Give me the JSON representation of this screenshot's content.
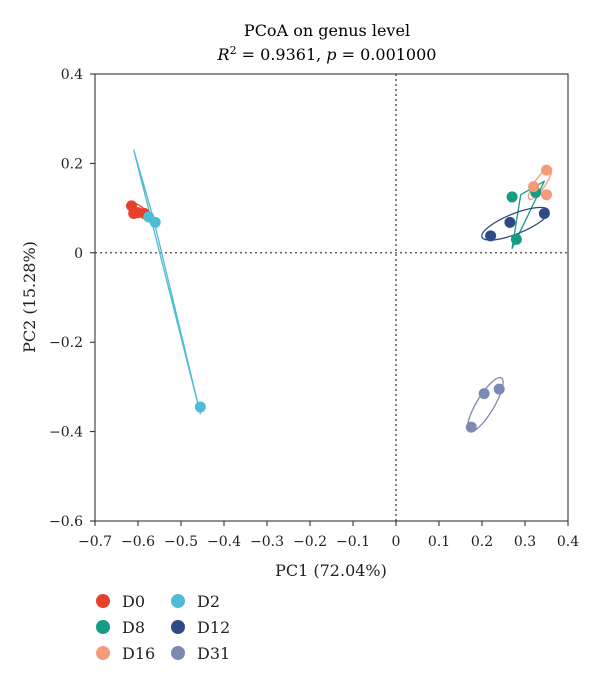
{
  "chart_data": {
    "type": "scatter",
    "title": "PCoA on genus level",
    "subtitle": {
      "r2_label": "R",
      "r2_sup": "2",
      "r2_value": " = 0.9361, ",
      "p_label": "p",
      "p_value": " = 0.001000"
    },
    "xlabel": "PC1 (72.04%)",
    "ylabel": "PC2 (15.28%)",
    "xlim": [
      -0.7,
      0.4
    ],
    "ylim": [
      -0.6,
      0.4
    ],
    "xticks": [
      -0.7,
      -0.6,
      -0.5,
      -0.4,
      -0.3,
      -0.2,
      -0.1,
      0,
      0.1,
      0.2,
      0.3,
      0.4
    ],
    "yticks": [
      -0.6,
      -0.4,
      -0.2,
      0,
      0.2,
      0.4
    ],
    "grid": false,
    "reference_lines": {
      "x": 0,
      "y": 0,
      "style": "dotted"
    },
    "legend_placement": "bottom-left, below plot",
    "series": [
      {
        "name": "D0",
        "color": "#e8412b",
        "points": [
          [
            -0.615,
            0.105
          ],
          [
            -0.61,
            0.088
          ],
          [
            -0.6,
            0.09
          ],
          [
            -0.585,
            0.088
          ]
        ],
        "ellipse_hull": [
          [
            -0.62,
            0.11
          ],
          [
            -0.58,
            0.085
          ]
        ]
      },
      {
        "name": "D2",
        "color": "#4ebcd5",
        "points": [
          [
            -0.575,
            0.08
          ],
          [
            -0.56,
            0.068
          ],
          [
            -0.455,
            -0.345
          ]
        ],
        "ellipse_hull": [
          [
            -0.61,
            0.23
          ],
          [
            -0.455,
            -0.36
          ],
          [
            -0.565,
            0.08
          ]
        ]
      },
      {
        "name": "D8",
        "color": "#169c82",
        "points": [
          [
            0.27,
            0.125
          ],
          [
            0.325,
            0.135
          ],
          [
            0.28,
            0.03
          ]
        ],
        "ellipse_hull": [
          [
            0.27,
            0.01
          ],
          [
            0.345,
            0.16
          ],
          [
            0.29,
            0.13
          ]
        ]
      },
      {
        "name": "D12",
        "color": "#2f4a85",
        "points": [
          [
            0.22,
            0.038
          ],
          [
            0.265,
            0.068
          ],
          [
            0.345,
            0.088
          ]
        ],
        "ellipse_hull": [
          [
            0.2,
            0.035
          ],
          [
            0.355,
            0.095
          ]
        ]
      },
      {
        "name": "D16",
        "color": "#f59a7b",
        "points": [
          [
            0.32,
            0.148
          ],
          [
            0.35,
            0.185
          ],
          [
            0.35,
            0.13
          ]
        ],
        "ellipse_hull": [
          [
            0.31,
            0.12
          ],
          [
            0.36,
            0.19
          ]
        ]
      },
      {
        "name": "D31",
        "color": "#7b89b3",
        "points": [
          [
            0.175,
            -0.39
          ],
          [
            0.205,
            -0.315
          ],
          [
            0.24,
            -0.305
          ]
        ],
        "ellipse_hull": [
          [
            0.17,
            -0.4
          ],
          [
            0.245,
            -0.28
          ]
        ]
      }
    ]
  }
}
